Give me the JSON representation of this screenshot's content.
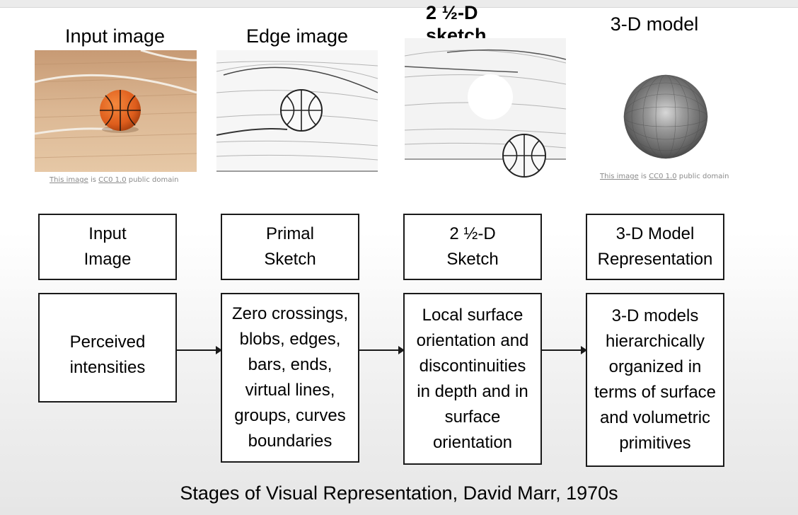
{
  "titles": {
    "input": "Input image",
    "edge": "Edge image",
    "sketch_line1": "2 ½-D",
    "sketch_line2": "sketch",
    "model": "3-D model"
  },
  "credits": {
    "input": {
      "link": "This image",
      "is": "is",
      "license": "CC0 1.0",
      "suffix": "public domain"
    },
    "model": {
      "link": "This image",
      "is": "is",
      "license": "CC0 1.0",
      "suffix": "public domain"
    }
  },
  "stage_boxes": [
    {
      "line1": "Input",
      "line2": "Image"
    },
    {
      "line1": "Primal",
      "line2": "Sketch"
    },
    {
      "line1": "2 ½-D",
      "line2": "Sketch"
    },
    {
      "line1": "3-D Model",
      "line2": "Representation"
    }
  ],
  "description_boxes": [
    {
      "lines": [
        "Perceived",
        "intensities"
      ]
    },
    {
      "lines": [
        "Zero crossings,",
        "blobs, edges,",
        "bars, ends,",
        "virtual lines,",
        "groups, curves",
        "boundaries"
      ]
    },
    {
      "lines": [
        "Local surface",
        "orientation and",
        "discontinuities",
        "in depth and in",
        "surface",
        "orientation"
      ]
    },
    {
      "lines": [
        "3-D models",
        "hierarchically",
        "organized in",
        "terms of surface",
        "and volumetric",
        "primitives"
      ]
    }
  ],
  "caption": "Stages of Visual Representation, David Marr, 1970s",
  "colors": {
    "floor": "#d9b48c",
    "ball": "#e0621f",
    "box_border": "#1a1a1a",
    "sphere": "#6e6e6e"
  },
  "icons": {
    "input": "basketball-photo",
    "edge": "edge-map-image",
    "sketch": "depth-sketch-image",
    "model": "shaded-sphere"
  }
}
